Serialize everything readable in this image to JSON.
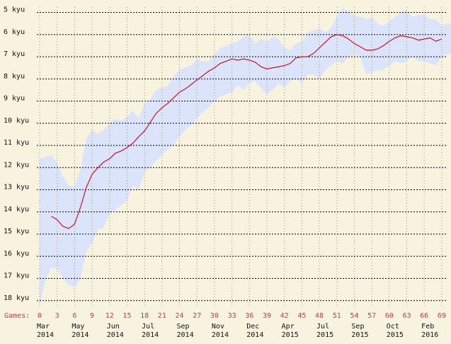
{
  "colors": {
    "background": "#f7f3df",
    "band": "#dce4fb",
    "line": "#d0102a",
    "grid_major": "#000000",
    "grid_minor": "#9a9a8a",
    "games_text": "#d9343c",
    "text": "#111111"
  },
  "chart_data": {
    "type": "line",
    "title": "",
    "xlabel": "Games:",
    "ylabel": "",
    "y_ticks": [
      "5 kyu",
      "6 kyu",
      "7 kyu",
      "8 kyu",
      "9 kyu",
      "10 kyu",
      "11 kyu",
      "12 kyu",
      "13 kyu",
      "14 kyu",
      "15 kyu",
      "16 kyu",
      "17 kyu",
      "18 kyu"
    ],
    "ylim": [
      18,
      5
    ],
    "xlim": [
      0,
      71
    ],
    "x_ticks": [
      0,
      3,
      6,
      9,
      12,
      15,
      18,
      21,
      24,
      27,
      30,
      33,
      36,
      39,
      42,
      45,
      48,
      51,
      54,
      57,
      60,
      63,
      66,
      69
    ],
    "date_labels": [
      {
        "month": "Mar",
        "year": "2014",
        "game": 0
      },
      {
        "month": "May",
        "year": "2014",
        "game": 6
      },
      {
        "month": "Jun",
        "year": "2014",
        "game": 12
      },
      {
        "month": "Jul",
        "year": "2014",
        "game": 18
      },
      {
        "month": "Sep",
        "year": "2014",
        "game": 24
      },
      {
        "month": "Nov",
        "year": "2014",
        "game": 30
      },
      {
        "month": "Dec",
        "year": "2014",
        "game": 36
      },
      {
        "month": "Apr",
        "year": "2015",
        "game": 42
      },
      {
        "month": "Jul",
        "year": "2015",
        "game": 48
      },
      {
        "month": "Sep",
        "year": "2015",
        "game": 54
      },
      {
        "month": "Oct",
        "year": "2015",
        "game": 60
      },
      {
        "month": "Feb",
        "year": "2016",
        "game": 66
      }
    ],
    "grid": true,
    "series": [
      {
        "kind": "rank",
        "x": [
          2,
          3,
          4,
          5,
          6,
          7,
          8,
          9,
          10,
          11,
          12,
          13,
          14,
          15,
          16,
          17,
          18,
          19,
          20,
          21,
          22,
          23,
          24,
          25,
          26,
          27,
          28,
          29,
          30,
          31,
          32,
          33,
          34,
          35,
          36,
          37,
          38,
          39,
          40,
          41,
          42,
          43,
          44,
          45,
          46,
          47,
          48,
          49,
          50,
          51,
          52,
          53,
          54,
          55,
          56,
          57,
          58,
          59,
          60,
          61,
          62,
          63,
          64,
          65,
          66,
          67,
          68,
          69
        ],
        "values": [
          14.2,
          14.35,
          14.65,
          14.75,
          14.55,
          13.8,
          12.9,
          12.3,
          12.0,
          11.75,
          11.6,
          11.35,
          11.25,
          11.1,
          10.9,
          10.6,
          10.35,
          9.95,
          9.55,
          9.3,
          9.1,
          8.85,
          8.6,
          8.45,
          8.25,
          8.05,
          7.85,
          7.65,
          7.5,
          7.3,
          7.2,
          7.1,
          7.15,
          7.1,
          7.15,
          7.25,
          7.45,
          7.55,
          7.5,
          7.45,
          7.4,
          7.3,
          7.05,
          7.0,
          7.0,
          6.85,
          6.6,
          6.35,
          6.1,
          6.0,
          6.05,
          6.2,
          6.4,
          6.55,
          6.7,
          6.7,
          6.65,
          6.5,
          6.3,
          6.15,
          6.05,
          6.1,
          6.15,
          6.25,
          6.2,
          6.15,
          6.3,
          6.2
        ]
      },
      {
        "kind": "band_upper",
        "x": [
          0,
          1,
          2,
          3,
          4,
          5,
          6,
          7,
          8,
          9,
          10,
          11,
          12,
          13,
          14,
          15,
          16,
          17,
          18,
          19,
          20,
          21,
          22,
          23,
          24,
          25,
          26,
          27,
          28,
          29,
          30,
          31,
          32,
          33,
          34,
          35,
          36,
          37,
          38,
          39,
          40,
          41,
          42,
          43,
          44,
          45,
          46,
          47,
          48,
          49,
          50,
          51,
          52,
          53,
          54,
          55,
          56,
          57,
          58,
          59,
          60,
          61,
          62,
          63,
          64,
          65,
          66,
          67,
          68,
          69,
          70,
          71
        ],
        "values": [
          11.6,
          11.5,
          11.45,
          11.8,
          12.4,
          12.8,
          12.9,
          12.1,
          10.7,
          10.3,
          10.5,
          10.3,
          10.0,
          9.8,
          9.9,
          9.7,
          9.4,
          9.8,
          9.1,
          8.9,
          8.5,
          8.4,
          8.3,
          7.9,
          7.6,
          7.5,
          7.4,
          7.1,
          7.2,
          7.2,
          6.9,
          6.6,
          6.5,
          6.4,
          6.3,
          6.1,
          6.0,
          6.4,
          6.2,
          6.3,
          6.1,
          6.2,
          6.6,
          6.7,
          6.4,
          6.3,
          5.9,
          5.8,
          5.7,
          5.9,
          5.7,
          5.2,
          4.8,
          5.0,
          5.1,
          5.2,
          5.3,
          5.2,
          5.5,
          5.6,
          5.4,
          5.2,
          5.0,
          4.9,
          5.2,
          5.1,
          5.1,
          5.3,
          5.3,
          5.6,
          5.5,
          5.5
        ]
      },
      {
        "kind": "band_lower",
        "x": [
          0,
          1,
          2,
          3,
          4,
          5,
          6,
          7,
          8,
          9,
          10,
          11,
          12,
          13,
          14,
          15,
          16,
          17,
          18,
          19,
          20,
          21,
          22,
          23,
          24,
          25,
          26,
          27,
          28,
          29,
          30,
          31,
          32,
          33,
          34,
          35,
          36,
          37,
          38,
          39,
          40,
          41,
          42,
          43,
          44,
          45,
          46,
          47,
          48,
          49,
          50,
          51,
          52,
          53,
          54,
          55,
          56,
          57,
          58,
          59,
          60,
          61,
          62,
          63,
          64,
          65,
          66,
          67,
          68,
          69,
          70,
          71
        ],
        "values": [
          18.2,
          17.1,
          16.5,
          16.6,
          17.0,
          17.3,
          17.4,
          17.0,
          15.8,
          15.4,
          14.8,
          14.7,
          14.1,
          13.9,
          13.7,
          13.5,
          12.8,
          13.0,
          12.2,
          12.0,
          11.7,
          11.4,
          11.2,
          11.0,
          10.6,
          10.3,
          10.1,
          9.8,
          9.5,
          9.3,
          9.0,
          8.8,
          8.7,
          8.6,
          8.3,
          8.5,
          8.2,
          8.1,
          8.4,
          8.7,
          8.5,
          8.2,
          8.4,
          8.1,
          8.0,
          8.2,
          7.8,
          7.8,
          8.0,
          7.6,
          7.4,
          7.2,
          7.3,
          7.0,
          6.9,
          7.0,
          7.8,
          7.7,
          7.6,
          7.6,
          7.4,
          7.2,
          7.3,
          7.2,
          7.0,
          7.2,
          7.2,
          7.3,
          7.4,
          7.0,
          6.9,
          6.8
        ]
      }
    ]
  }
}
